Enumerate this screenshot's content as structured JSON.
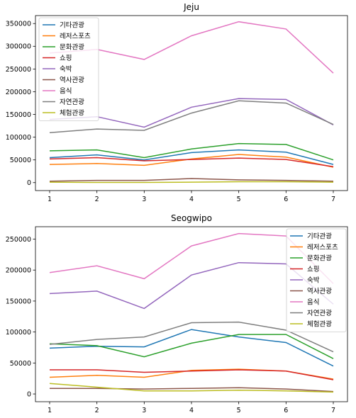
{
  "colors": [
    "#1f77b4",
    "#ff7f0e",
    "#2ca02c",
    "#d62728",
    "#9467bd",
    "#8c564b",
    "#e377c2",
    "#7f7f7f",
    "#bcbd22"
  ],
  "chart_data": [
    {
      "type": "line",
      "title": "Jeju",
      "xlabel": "",
      "ylabel": "",
      "x": [
        1,
        2,
        3,
        4,
        5,
        6,
        7
      ],
      "xlim": [
        0.7,
        7.3
      ],
      "ylim": [
        -17500,
        367500
      ],
      "yticks": [
        0,
        50000,
        100000,
        150000,
        200000,
        250000,
        300000,
        350000
      ],
      "grid": false,
      "legend": "upper-left",
      "series": [
        {
          "name": "기타관광",
          "values": [
            55000,
            61000,
            50000,
            66000,
            72000,
            67000,
            40000
          ]
        },
        {
          "name": "레저스포츠",
          "values": [
            40000,
            42000,
            38000,
            52000,
            62000,
            56000,
            34000
          ]
        },
        {
          "name": "문화관광",
          "values": [
            70000,
            72000,
            55000,
            74000,
            86000,
            84000,
            50000
          ]
        },
        {
          "name": "쇼핑",
          "values": [
            52000,
            55000,
            48000,
            51000,
            54000,
            51000,
            35000
          ]
        },
        {
          "name": "숙박",
          "values": [
            139000,
            145000,
            122000,
            166000,
            185000,
            183000,
            127000
          ]
        },
        {
          "name": "역사관광",
          "values": [
            3000,
            5000,
            5000,
            9000,
            6000,
            5000,
            3000
          ]
        },
        {
          "name": "음식",
          "values": [
            285000,
            293000,
            271000,
            323000,
            354000,
            338000,
            241000
          ]
        },
        {
          "name": "자연관광",
          "values": [
            110000,
            118000,
            115000,
            153000,
            180000,
            175000,
            128000
          ]
        },
        {
          "name": "체험관광",
          "values": [
            1000,
            500,
            500,
            1000,
            2000,
            2000,
            1000
          ]
        }
      ]
    },
    {
      "type": "line",
      "title": "Seogwipo",
      "xlabel": "",
      "ylabel": "",
      "x": [
        1,
        2,
        3,
        4,
        5,
        6,
        7
      ],
      "xlim": [
        0.7,
        7.3
      ],
      "ylim": [
        -12500,
        270000
      ],
      "yticks": [
        0,
        50000,
        100000,
        150000,
        200000,
        250000
      ],
      "grid": false,
      "legend": "upper-right",
      "series": [
        {
          "name": "기타관광",
          "values": [
            74000,
            77000,
            76000,
            104000,
            92000,
            83000,
            45000
          ]
        },
        {
          "name": "레저스포츠",
          "values": [
            27000,
            30000,
            27000,
            38000,
            40000,
            37000,
            24000
          ]
        },
        {
          "name": "문화관광",
          "values": [
            81000,
            78000,
            60000,
            82000,
            96000,
            96000,
            57000
          ]
        },
        {
          "name": "쇼핑",
          "values": [
            39000,
            39000,
            35000,
            37000,
            39000,
            37000,
            23000
          ]
        },
        {
          "name": "숙박",
          "values": [
            162000,
            166000,
            138000,
            192000,
            212000,
            210000,
            145000
          ]
        },
        {
          "name": "역사관광",
          "values": [
            9000,
            9000,
            8000,
            9000,
            10000,
            8000,
            4000
          ]
        },
        {
          "name": "음식",
          "values": [
            196000,
            207000,
            186000,
            239000,
            259000,
            255000,
            178000
          ]
        },
        {
          "name": "자연관광",
          "values": [
            80000,
            88000,
            92000,
            115000,
            116000,
            103000,
            68000
          ]
        },
        {
          "name": "체험관광",
          "values": [
            17000,
            11000,
            5000,
            5000,
            6000,
            5000,
            3000
          ]
        }
      ]
    }
  ]
}
